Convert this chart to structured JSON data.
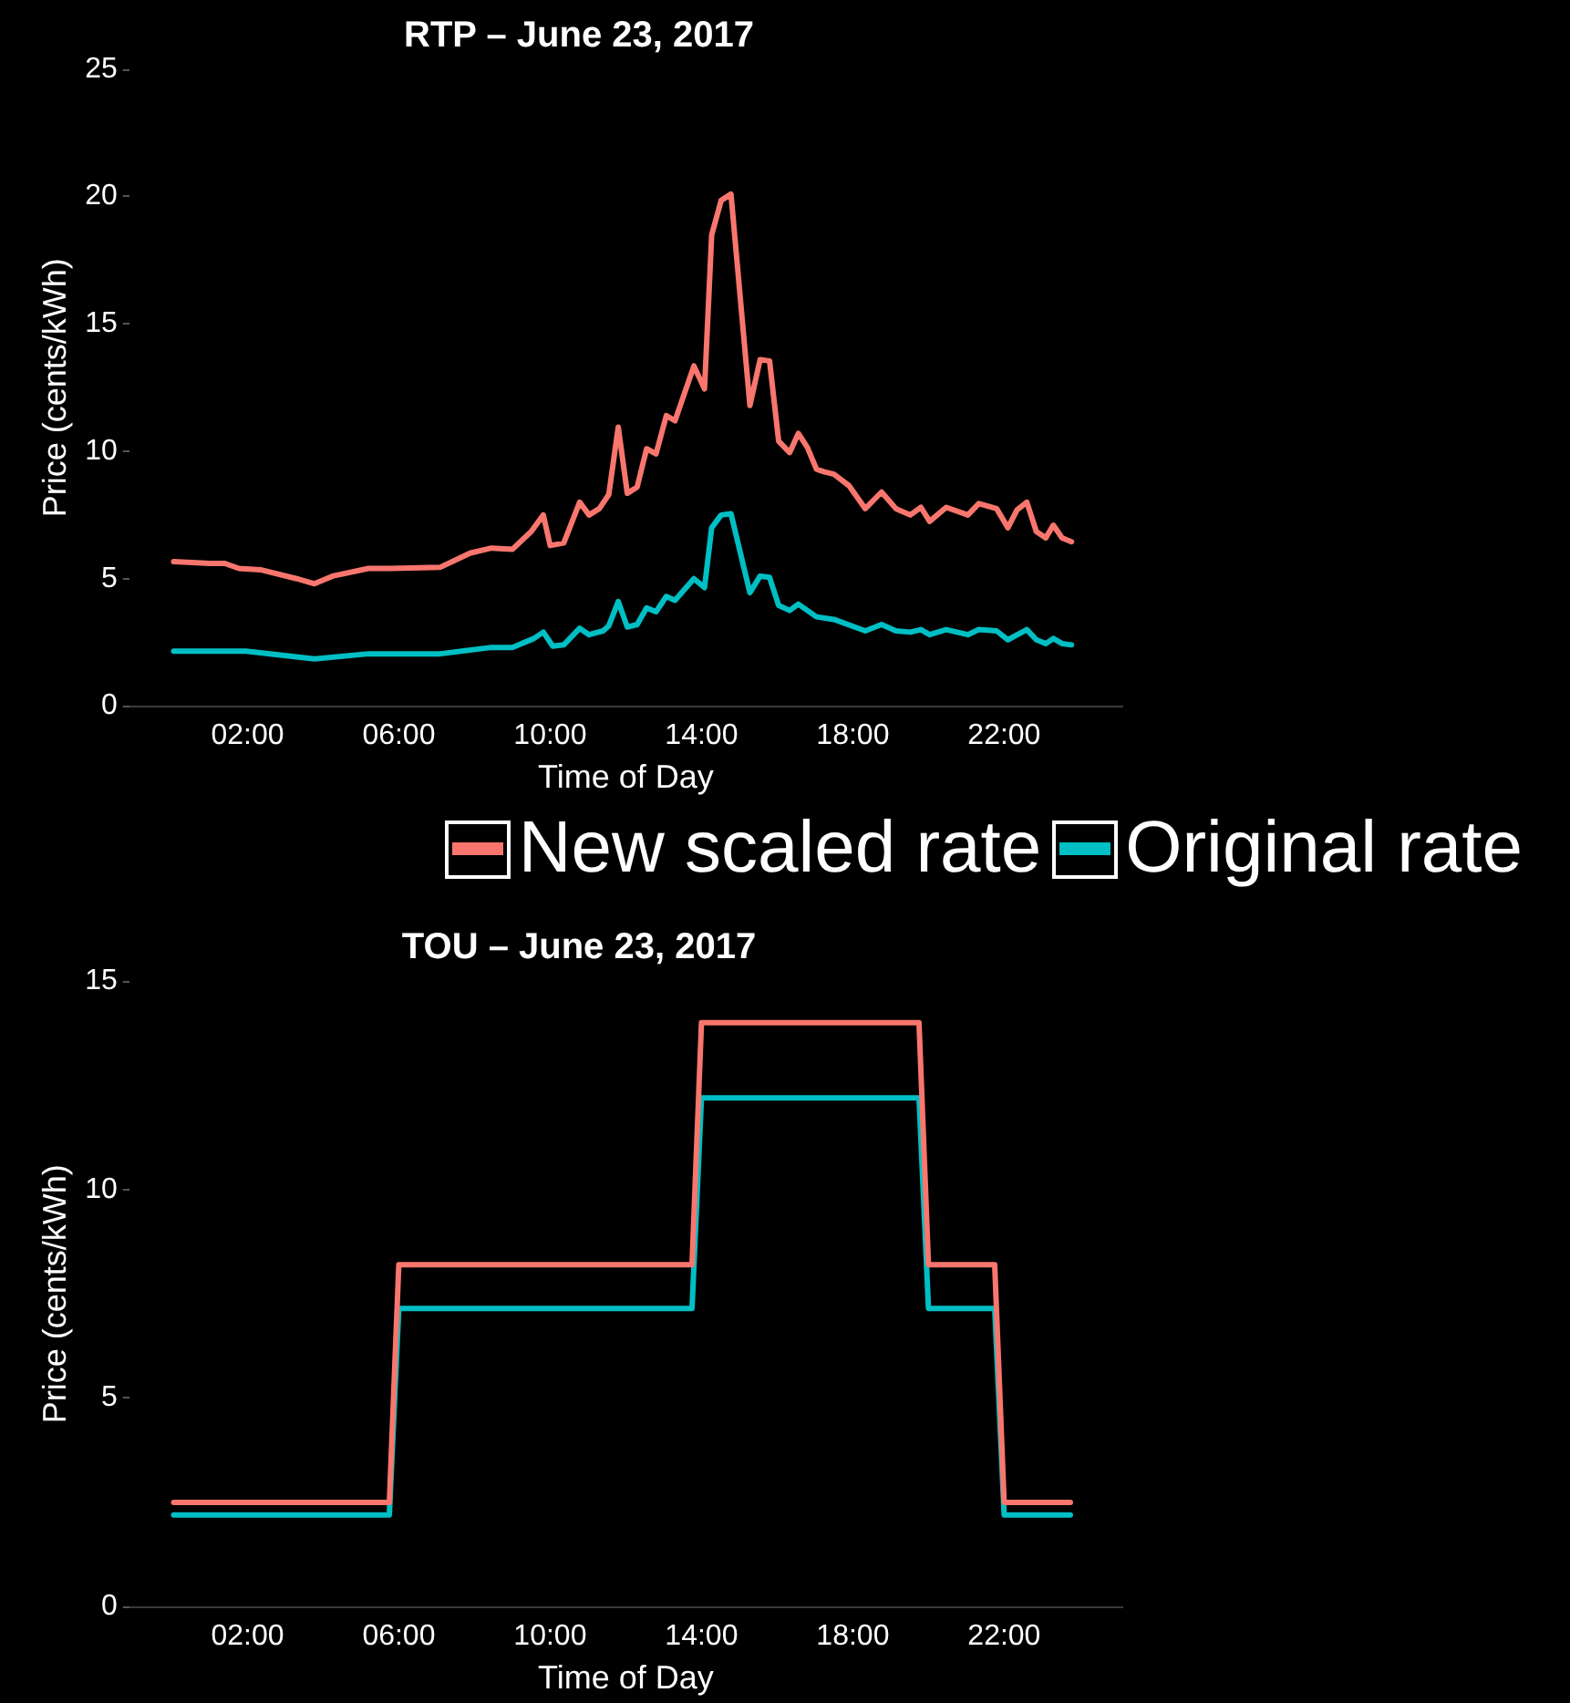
{
  "chart_data": [
    {
      "type": "line",
      "title": "RTP – June 23, 2017",
      "xlabel": "Time of Day",
      "ylabel": "Price (cents/kWh)",
      "legend": "bottom",
      "xlim": [
        -1.1,
        25.1
      ],
      "xticks": [
        {
          "value": 2,
          "label": "02:00"
        },
        {
          "value": 6,
          "label": "06:00"
        },
        {
          "value": 10,
          "label": "10:00"
        },
        {
          "value": 14,
          "label": "14:00"
        },
        {
          "value": 18,
          "label": "18:00"
        },
        {
          "value": 22,
          "label": "22:00"
        }
      ],
      "ylim": [
        0,
        25
      ],
      "yticks": [
        0,
        5,
        10,
        15,
        20,
        25
      ],
      "series": [
        {
          "name": "New scaled rate",
          "color": "#f8766d",
          "x": [
            0.05,
            1.0,
            1.4,
            1.77,
            2.34,
            3.3,
            3.77,
            4.25,
            5.2,
            5.78,
            7.1,
            7.88,
            8.45,
            9.0,
            9.5,
            9.82,
            10.0,
            10.36,
            10.78,
            11.03,
            11.3,
            11.55,
            11.8,
            12.04,
            12.3,
            12.55,
            12.8,
            13.07,
            13.3,
            13.8,
            14.08,
            14.27,
            14.52,
            14.78,
            15.28,
            15.55,
            15.8,
            16.04,
            16.33,
            16.56,
            16.8,
            17.04,
            17.23,
            17.5,
            17.9,
            18.33,
            18.76,
            19.14,
            19.52,
            19.8,
            20.03,
            20.47,
            21.04,
            21.33,
            21.8,
            22.1,
            22.34,
            22.6,
            22.85,
            23.1,
            23.3,
            23.53,
            23.78
          ],
          "values": [
            5.67,
            5.6,
            5.6,
            5.4,
            5.35,
            5.0,
            4.8,
            5.1,
            5.4,
            5.4,
            5.45,
            6.0,
            6.2,
            6.15,
            6.85,
            7.5,
            6.3,
            6.4,
            8.0,
            7.5,
            7.75,
            8.3,
            10.95,
            8.35,
            8.6,
            10.1,
            9.9,
            11.4,
            11.2,
            13.35,
            12.45,
            18.5,
            19.85,
            20.1,
            11.8,
            13.6,
            13.55,
            10.4,
            9.95,
            10.7,
            10.15,
            9.3,
            9.2,
            9.1,
            8.65,
            7.75,
            8.4,
            7.75,
            7.5,
            7.8,
            7.25,
            7.8,
            7.5,
            7.95,
            7.75,
            7.0,
            7.7,
            8.0,
            6.85,
            6.6,
            7.1,
            6.6,
            6.45
          ]
        },
        {
          "name": "Original rate",
          "color": "#00bfc4",
          "x": [
            0.05,
            1.96,
            3.77,
            5.2,
            7.1,
            8.45,
            9.0,
            9.57,
            9.82,
            10.07,
            10.36,
            10.78,
            11.03,
            11.4,
            11.55,
            11.8,
            12.04,
            12.3,
            12.55,
            12.8,
            13.07,
            13.3,
            13.8,
            14.08,
            14.27,
            14.52,
            14.78,
            15.28,
            15.55,
            15.8,
            16.04,
            16.33,
            16.56,
            17.04,
            17.5,
            18.33,
            18.76,
            19.14,
            19.52,
            19.8,
            20.03,
            20.47,
            21.04,
            21.33,
            21.8,
            22.1,
            22.6,
            22.85,
            23.1,
            23.3,
            23.53,
            23.78
          ],
          "values": [
            2.15,
            2.15,
            1.85,
            2.05,
            2.05,
            2.3,
            2.3,
            2.65,
            2.9,
            2.35,
            2.4,
            3.05,
            2.8,
            2.95,
            3.15,
            4.1,
            3.1,
            3.2,
            3.85,
            3.7,
            4.3,
            4.15,
            5.0,
            4.65,
            7.0,
            7.5,
            7.55,
            4.45,
            5.1,
            5.05,
            3.95,
            3.75,
            4.0,
            3.5,
            3.4,
            2.95,
            3.2,
            2.95,
            2.9,
            3.0,
            2.8,
            3.0,
            2.8,
            3.0,
            2.95,
            2.6,
            3.0,
            2.6,
            2.45,
            2.65,
            2.45,
            2.4
          ]
        }
      ]
    },
    {
      "type": "line",
      "title": "TOU – June 23, 2017",
      "xlabel": "Time of Day",
      "ylabel": "Price (cents/kWh)",
      "xlim": [
        -1.1,
        25.1
      ],
      "xticks": [
        {
          "value": 2,
          "label": "02:00"
        },
        {
          "value": 6,
          "label": "06:00"
        },
        {
          "value": 10,
          "label": "10:00"
        },
        {
          "value": 14,
          "label": "14:00"
        },
        {
          "value": 18,
          "label": "18:00"
        },
        {
          "value": 22,
          "label": "22:00"
        }
      ],
      "ylim": [
        0,
        15
      ],
      "yticks": [
        0,
        5,
        10,
        15
      ],
      "series": [
        {
          "color": "#f8766d",
          "x": [
            0.05,
            5.75,
            6.0,
            13.75,
            14.0,
            19.75,
            20.0,
            21.75,
            22.0,
            23.75
          ],
          "values": [
            2.5,
            2.5,
            8.2,
            8.2,
            14.0,
            14.0,
            8.2,
            8.2,
            2.5,
            2.5
          ]
        },
        {
          "color": "#00bfc4",
          "x": [
            0.05,
            5.75,
            6.0,
            13.75,
            14.0,
            19.75,
            20.0,
            21.75,
            22.0,
            23.75
          ],
          "values": [
            2.2,
            2.2,
            7.15,
            7.15,
            12.2,
            12.2,
            7.15,
            7.15,
            2.2,
            2.2
          ]
        }
      ]
    }
  ]
}
